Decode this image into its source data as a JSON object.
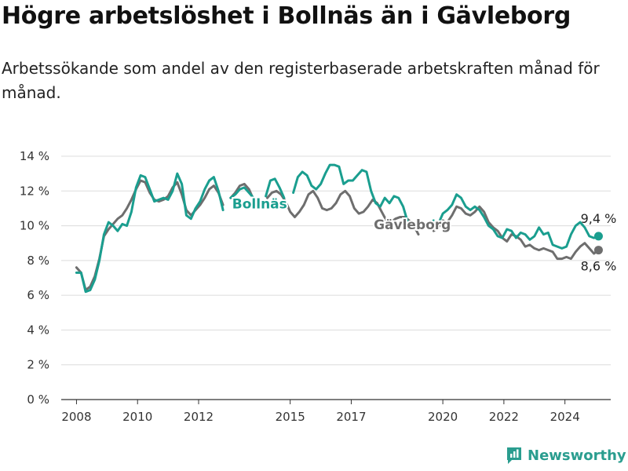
{
  "title": "Högre arbetslöshet i Bollnäs än i Gävleborg",
  "subtitle": "Arbetssökande som andel av den registerbaserade arbetskraften månad för månad.",
  "brand": {
    "name": "Newsworthy",
    "logo_icon": "newsworthy-logo-icon",
    "color": "#2a9d8f"
  },
  "chart_data": {
    "type": "line",
    "ylim": [
      0,
      14
    ],
    "y_ticks": [
      {
        "value": 0,
        "label": "0 %"
      },
      {
        "value": 2,
        "label": "2 %"
      },
      {
        "value": 4,
        "label": "4 %"
      },
      {
        "value": 6,
        "label": "6 %"
      },
      {
        "value": 8,
        "label": "8 %"
      },
      {
        "value": 10,
        "label": "10 %"
      },
      {
        "value": 12,
        "label": "12 %"
      },
      {
        "value": 14,
        "label": "14 %"
      }
    ],
    "xlim": [
      2007.5,
      2025.5
    ],
    "x_ticks": [
      {
        "value": 2008,
        "label": "2008"
      },
      {
        "value": 2010,
        "label": "2010"
      },
      {
        "value": 2012,
        "label": "2012"
      },
      {
        "value": 2015,
        "label": "2015"
      },
      {
        "value": 2017,
        "label": "2017"
      },
      {
        "value": 2020,
        "label": "2020"
      },
      {
        "value": 2022,
        "label": "2022"
      },
      {
        "value": 2024,
        "label": "2024"
      }
    ],
    "grid": "horizontal",
    "series": [
      {
        "name": "Gävleborg",
        "color": "#6e6e6e",
        "end_label": "8,6 %",
        "points": [
          [
            2008.0,
            7.6
          ],
          [
            2008.15,
            7.3
          ],
          [
            2008.3,
            6.3
          ],
          [
            2008.45,
            6.5
          ],
          [
            2008.6,
            7.1
          ],
          [
            2008.75,
            8.1
          ],
          [
            2008.9,
            9.4
          ],
          [
            2009.05,
            9.8
          ],
          [
            2009.2,
            10.1
          ],
          [
            2009.35,
            10.4
          ],
          [
            2009.5,
            10.6
          ],
          [
            2009.65,
            11.0
          ],
          [
            2009.8,
            11.5
          ],
          [
            2009.95,
            12.1
          ],
          [
            2010.1,
            12.6
          ],
          [
            2010.25,
            12.5
          ],
          [
            2010.4,
            11.9
          ],
          [
            2010.55,
            11.5
          ],
          [
            2010.7,
            11.4
          ],
          [
            2010.85,
            11.5
          ],
          [
            2011.0,
            11.7
          ],
          [
            2011.15,
            12.2
          ],
          [
            2011.3,
            12.5
          ],
          [
            2011.45,
            11.8
          ],
          [
            2011.6,
            10.9
          ],
          [
            2011.75,
            10.6
          ],
          [
            2011.9,
            10.9
          ],
          [
            2012.05,
            11.2
          ],
          [
            2012.2,
            11.6
          ],
          [
            2012.35,
            12.1
          ],
          [
            2012.5,
            12.3
          ],
          [
            2012.65,
            11.9
          ],
          [
            2012.8,
            11.2
          ],
          null,
          [
            2013.05,
            11.6
          ],
          [
            2013.2,
            11.9
          ],
          [
            2013.35,
            12.3
          ],
          [
            2013.5,
            12.4
          ],
          [
            2013.65,
            12.1
          ],
          [
            2013.8,
            11.5
          ],
          null,
          [
            2014.25,
            11.6
          ],
          [
            2014.4,
            11.9
          ],
          [
            2014.55,
            12.0
          ],
          [
            2014.7,
            11.8
          ],
          [
            2014.85,
            11.4
          ],
          [
            2015.0,
            10.8
          ],
          [
            2015.15,
            10.5
          ],
          [
            2015.3,
            10.8
          ],
          [
            2015.45,
            11.2
          ],
          [
            2015.6,
            11.8
          ],
          [
            2015.75,
            12.0
          ],
          [
            2015.9,
            11.6
          ],
          [
            2016.05,
            11.0
          ],
          [
            2016.2,
            10.9
          ],
          [
            2016.35,
            11.0
          ],
          [
            2016.5,
            11.3
          ],
          [
            2016.65,
            11.8
          ],
          [
            2016.8,
            12.0
          ],
          [
            2016.95,
            11.7
          ],
          [
            2017.1,
            11.0
          ],
          [
            2017.25,
            10.7
          ],
          [
            2017.4,
            10.8
          ],
          [
            2017.55,
            11.1
          ],
          [
            2017.7,
            11.5
          ],
          [
            2017.85,
            11.3
          ],
          [
            2018.0,
            10.8
          ],
          [
            2018.15,
            10.3
          ],
          [
            2018.3,
            10.2
          ],
          [
            2018.45,
            10.4
          ],
          [
            2018.6,
            10.5
          ],
          [
            2018.75,
            10.5
          ],
          [
            2018.9,
            10.3
          ],
          [
            2019.05,
            10.0
          ],
          [
            2019.2,
            9.5
          ],
          null,
          [
            2019.7,
            9.7
          ],
          [
            2019.85,
            9.9
          ],
          [
            2020.0,
            10.3
          ],
          [
            2020.15,
            10.2
          ],
          [
            2020.3,
            10.6
          ],
          [
            2020.45,
            11.1
          ],
          [
            2020.6,
            11.0
          ],
          [
            2020.75,
            10.7
          ],
          [
            2020.9,
            10.6
          ],
          [
            2021.05,
            10.8
          ],
          [
            2021.2,
            11.1
          ],
          [
            2021.35,
            10.8
          ],
          [
            2021.5,
            10.2
          ],
          [
            2021.65,
            9.9
          ],
          [
            2021.8,
            9.7
          ],
          [
            2021.95,
            9.3
          ],
          [
            2022.1,
            9.1
          ],
          [
            2022.25,
            9.5
          ],
          [
            2022.4,
            9.4
          ],
          [
            2022.55,
            9.2
          ],
          [
            2022.7,
            8.8
          ],
          [
            2022.85,
            8.9
          ],
          [
            2023.0,
            8.7
          ],
          [
            2023.15,
            8.6
          ],
          [
            2023.3,
            8.7
          ],
          [
            2023.45,
            8.6
          ],
          [
            2023.6,
            8.5
          ],
          [
            2023.75,
            8.1
          ],
          [
            2023.9,
            8.1
          ],
          [
            2024.05,
            8.2
          ],
          [
            2024.2,
            8.1
          ],
          [
            2024.35,
            8.5
          ],
          [
            2024.5,
            8.8
          ],
          [
            2024.65,
            9.0
          ],
          [
            2024.8,
            8.7
          ],
          [
            2024.95,
            8.4
          ],
          [
            2025.1,
            8.6
          ]
        ]
      },
      {
        "name": "Bollnäs",
        "color": "#1a9e8f",
        "end_label": "9,4 %",
        "points": [
          [
            2008.0,
            7.3
          ],
          [
            2008.15,
            7.3
          ],
          [
            2008.3,
            6.2
          ],
          [
            2008.45,
            6.3
          ],
          [
            2008.6,
            6.9
          ],
          [
            2008.75,
            8.0
          ],
          [
            2008.9,
            9.5
          ],
          [
            2009.05,
            10.2
          ],
          [
            2009.2,
            10.0
          ],
          [
            2009.35,
            9.7
          ],
          [
            2009.5,
            10.1
          ],
          [
            2009.65,
            10.0
          ],
          [
            2009.8,
            10.8
          ],
          [
            2009.95,
            12.2
          ],
          [
            2010.1,
            12.9
          ],
          [
            2010.25,
            12.8
          ],
          [
            2010.4,
            12.1
          ],
          [
            2010.55,
            11.4
          ],
          [
            2010.7,
            11.5
          ],
          [
            2010.85,
            11.6
          ],
          [
            2011.0,
            11.5
          ],
          [
            2011.15,
            12.0
          ],
          [
            2011.3,
            13.0
          ],
          [
            2011.45,
            12.4
          ],
          [
            2011.6,
            10.6
          ],
          [
            2011.75,
            10.4
          ],
          [
            2011.9,
            11.0
          ],
          [
            2012.05,
            11.4
          ],
          [
            2012.2,
            12.1
          ],
          [
            2012.35,
            12.6
          ],
          [
            2012.5,
            12.8
          ],
          [
            2012.65,
            12.0
          ],
          [
            2012.8,
            10.9
          ],
          null,
          [
            2013.05,
            11.6
          ],
          [
            2013.2,
            11.8
          ],
          [
            2013.35,
            12.1
          ],
          [
            2013.5,
            12.2
          ],
          [
            2013.65,
            11.9
          ],
          [
            2013.8,
            11.6
          ],
          null,
          [
            2014.2,
            11.7
          ],
          [
            2014.35,
            12.6
          ],
          [
            2014.5,
            12.7
          ],
          [
            2014.65,
            12.2
          ],
          [
            2014.8,
            11.6
          ],
          null,
          [
            2015.1,
            11.9
          ],
          [
            2015.25,
            12.8
          ],
          [
            2015.4,
            13.1
          ],
          [
            2015.55,
            12.9
          ],
          [
            2015.7,
            12.3
          ],
          [
            2015.85,
            12.1
          ],
          [
            2016.0,
            12.4
          ],
          [
            2016.15,
            13.0
          ],
          [
            2016.3,
            13.5
          ],
          [
            2016.45,
            13.5
          ],
          [
            2016.6,
            13.4
          ],
          [
            2016.75,
            12.4
          ],
          [
            2016.9,
            12.6
          ],
          [
            2017.05,
            12.6
          ],
          [
            2017.2,
            12.9
          ],
          [
            2017.35,
            13.2
          ],
          [
            2017.5,
            13.1
          ],
          [
            2017.65,
            12.0
          ],
          [
            2017.8,
            11.3
          ],
          [
            2017.95,
            11.1
          ],
          [
            2018.1,
            11.6
          ],
          [
            2018.25,
            11.3
          ],
          [
            2018.4,
            11.7
          ],
          [
            2018.55,
            11.6
          ],
          [
            2018.7,
            11.1
          ],
          [
            2018.85,
            10.2
          ],
          [
            2019.0,
            9.8
          ],
          null,
          [
            2019.55,
            10.0
          ],
          [
            2019.7,
            10.3
          ],
          [
            2019.85,
            10.1
          ],
          [
            2020.0,
            10.7
          ],
          [
            2020.15,
            10.9
          ],
          [
            2020.3,
            11.2
          ],
          [
            2020.45,
            11.8
          ],
          [
            2020.6,
            11.6
          ],
          [
            2020.75,
            11.1
          ],
          [
            2020.9,
            10.9
          ],
          [
            2021.05,
            11.1
          ],
          [
            2021.2,
            10.9
          ],
          [
            2021.35,
            10.5
          ],
          [
            2021.5,
            10.0
          ],
          [
            2021.65,
            9.8
          ],
          [
            2021.8,
            9.4
          ],
          [
            2021.95,
            9.3
          ],
          [
            2022.1,
            9.8
          ],
          [
            2022.25,
            9.7
          ],
          [
            2022.4,
            9.3
          ],
          [
            2022.55,
            9.6
          ],
          [
            2022.7,
            9.5
          ],
          [
            2022.85,
            9.2
          ],
          [
            2023.0,
            9.4
          ],
          [
            2023.15,
            9.9
          ],
          [
            2023.3,
            9.5
          ],
          [
            2023.45,
            9.6
          ],
          [
            2023.6,
            8.9
          ],
          [
            2023.75,
            8.8
          ],
          [
            2023.9,
            8.7
          ],
          [
            2024.05,
            8.8
          ],
          [
            2024.2,
            9.5
          ],
          [
            2024.35,
            10.0
          ],
          [
            2024.5,
            10.2
          ],
          [
            2024.65,
            9.9
          ],
          [
            2024.8,
            9.4
          ],
          [
            2024.95,
            9.3
          ],
          [
            2025.1,
            9.4
          ]
        ]
      }
    ]
  }
}
